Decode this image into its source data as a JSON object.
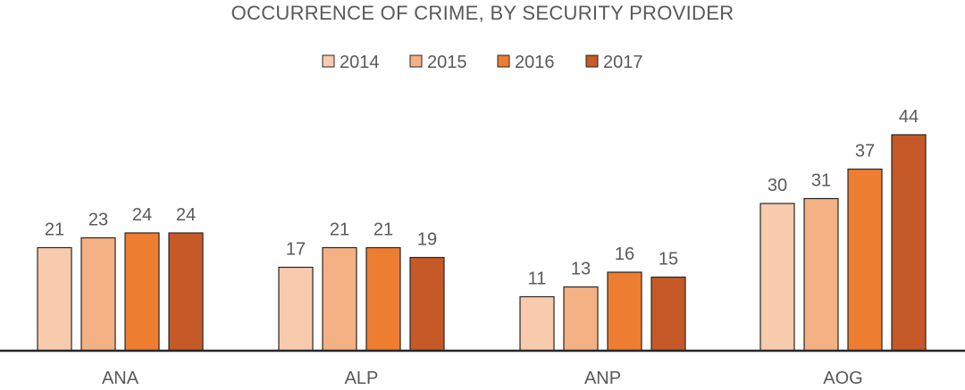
{
  "chart_data": {
    "type": "bar",
    "title": "OCCURRENCE OF CRIME, BY SECURITY PROVIDER",
    "xlabel": "",
    "ylabel": "",
    "categories": [
      "ANA",
      "ALP",
      "ANP",
      "AOG"
    ],
    "series": [
      {
        "name": "2014",
        "color": "#F8CBAD",
        "values": [
          21,
          17,
          11,
          30
        ]
      },
      {
        "name": "2015",
        "color": "#F4B183",
        "values": [
          23,
          21,
          13,
          31
        ]
      },
      {
        "name": "2016",
        "color": "#ED7D31",
        "values": [
          24,
          21,
          16,
          37
        ]
      },
      {
        "name": "2017",
        "color": "#C55A28",
        "values": [
          24,
          19,
          15,
          44
        ]
      }
    ],
    "ylim": [
      0,
      45
    ],
    "grid": false,
    "legend_position": "top-center",
    "data_labels": true
  }
}
